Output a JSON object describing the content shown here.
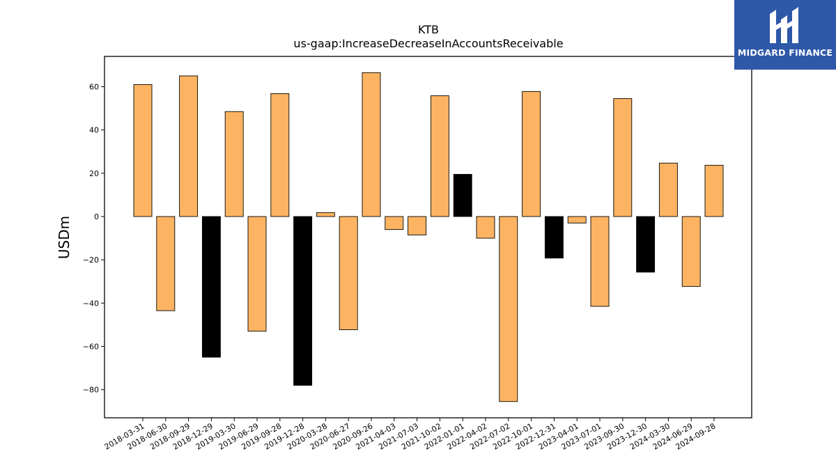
{
  "chart_data": {
    "type": "bar",
    "title": "KTB",
    "subtitle": "us-gaap:IncreaseDecreaseInAccountsReceivable",
    "xlabel": "",
    "ylabel": "USDm",
    "ylim": [
      -93,
      74
    ],
    "yticks": [
      60,
      40,
      20,
      0,
      -20,
      -40,
      -60,
      -80
    ],
    "grid": false,
    "categories": [
      "2018-03-31",
      "2018-06-30",
      "2018-09-29",
      "2018-12-29",
      "2019-03-30",
      "2019-06-29",
      "2019-09-28",
      "2019-12-28",
      "2020-03-28",
      "2020-06-27",
      "2020-09-26",
      "2021-04-03",
      "2021-07-03",
      "2021-10-02",
      "2022-01-01",
      "2022-04-02",
      "2022-07-02",
      "2022-10-01",
      "2022-12-31",
      "2023-04-01",
      "2023-07-01",
      "2023-09-30",
      "2023-12-30",
      "2024-03-30",
      "2024-06-29",
      "2024-09-28"
    ],
    "values": [
      61,
      -43.5,
      65,
      -65,
      48.5,
      -53,
      56.8,
      -78,
      1.8,
      -52.3,
      66.5,
      -6,
      -8.5,
      55.8,
      19.5,
      -10,
      -85.5,
      57.8,
      -19.2,
      -3,
      -41.5,
      54.5,
      -25.7,
      24.7,
      -32.3,
      23.7
    ],
    "bar_fill_colors": [
      "#fdb462",
      "#fdb462",
      "#fdb462",
      "#000000",
      "#fdb462",
      "#fdb462",
      "#fdb462",
      "#000000",
      "#fdb462",
      "#fdb462",
      "#fdb462",
      "#fdb462",
      "#fdb462",
      "#fdb462",
      "#000000",
      "#fdb462",
      "#fdb462",
      "#fdb462",
      "#000000",
      "#fdb462",
      "#fdb462",
      "#fdb462",
      "#000000",
      "#fdb462",
      "#fdb462",
      "#fdb462"
    ]
  },
  "logo": {
    "text": "MIDGARD FINANCE",
    "icon": "midgard-logo-icon",
    "background": "#2e58a8"
  }
}
